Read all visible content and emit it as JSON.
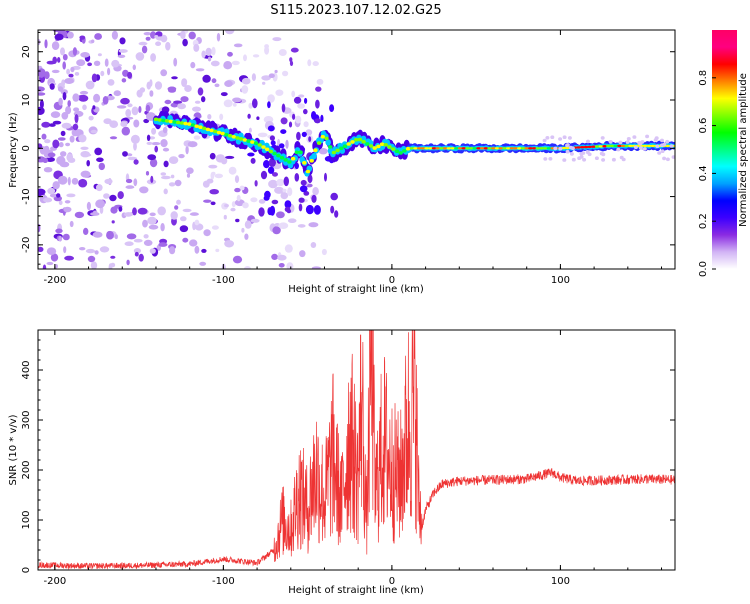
{
  "title": "S115.2023.107.12.02.G25",
  "chart_data": [
    {
      "type": "heatmap",
      "xlabel": "Height of straight line (km)",
      "ylabel": "Frequency (Hz)",
      "xlim": [
        -210,
        168
      ],
      "ylim": [
        -25,
        24.5
      ],
      "x_ticks": [
        -200,
        -100,
        0,
        100
      ],
      "y_ticks": [
        -20,
        -10,
        0,
        10,
        20
      ],
      "colorbar": {
        "label": "Normalized spectral amplitude",
        "range": [
          0,
          1
        ],
        "ticks": [
          "0.0",
          "0.2",
          "0.4",
          "0.6",
          "0.8"
        ],
        "colors": [
          "#ffffff",
          "#d2b4f5",
          "#8a2be2",
          "#3c00ff",
          "#0000ff",
          "#00a0ff",
          "#00ffff",
          "#00ff80",
          "#00ff00",
          "#80ff00",
          "#ffff00",
          "#ff8000",
          "#ff0000",
          "#ff0080",
          "#ff0066"
        ]
      },
      "ridge": {
        "x": [
          -140,
          -120,
          -100,
          -90,
          -80,
          -70,
          -60,
          -55,
          -50,
          -45,
          -40,
          -35,
          -30,
          -25,
          -20,
          -15,
          -10,
          -5,
          0,
          5,
          10,
          50,
          100,
          130,
          168
        ],
        "y": [
          6,
          5,
          3,
          2,
          1,
          -1,
          -3,
          0,
          -5,
          0,
          3,
          -1,
          0,
          1,
          2,
          1,
          0,
          1,
          0,
          -1,
          0,
          0,
          0,
          0.5,
          0.5
        ]
      },
      "noise_region_x": [
        -210,
        -40
      ]
    },
    {
      "type": "line",
      "xlabel": "Height of straight line (km)",
      "ylabel": "SNR (10 * v/v)",
      "xlim": [
        -210,
        168
      ],
      "ylim": [
        0,
        480
      ],
      "x_ticks": [
        -200,
        -100,
        0,
        100
      ],
      "y_ticks": [
        0,
        100,
        200,
        300,
        400
      ],
      "series": [
        {
          "color": "#ee3333",
          "x": [
            -210,
            -180,
            -150,
            -120,
            -100,
            -80,
            -70,
            -65,
            -60,
            -55,
            -50,
            -45,
            -40,
            -35,
            -30,
            -25,
            -20,
            -18,
            -15,
            -12,
            -10,
            -5,
            0,
            5,
            10,
            14,
            16,
            18,
            20,
            25,
            30,
            40,
            60,
            80,
            95,
            100,
            110,
            130,
            150,
            168
          ],
          "y": [
            10,
            8,
            9,
            12,
            22,
            14,
            40,
            100,
            80,
            160,
            120,
            200,
            140,
            230,
            130,
            280,
            180,
            350,
            90,
            480,
            150,
            260,
            200,
            180,
            300,
            330,
            130,
            90,
            120,
            155,
            172,
            178,
            180,
            182,
            195,
            185,
            178,
            180,
            182,
            180
          ]
        }
      ]
    }
  ]
}
